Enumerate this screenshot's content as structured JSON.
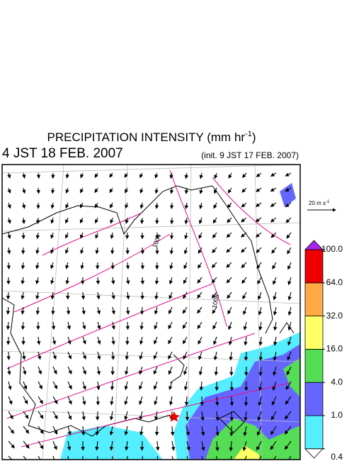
{
  "header": {
    "title": "PRECIPITATION INTENSITY (mm hr",
    "title_exponent": "-1",
    "title_close": ")",
    "valid_time": "4 JST 18 FEB. 2007",
    "init_time": "(init. 9 JST 17 FEB. 2007)"
  },
  "reference_vector": {
    "label": "20 m s",
    "exponent": "-1"
  },
  "isobar_labels": [
    "1004",
    "1008"
  ],
  "colorbar": {
    "levels": [
      0.4,
      {
        "value": 1.0,
        "label": "1.0"
      },
      {
        "value": 4.0,
        "label": "4.0"
      },
      {
        "value": 16.0,
        "label": "16.0"
      },
      {
        "value": 32.0,
        "label": "32.0"
      },
      {
        "value": 64.0,
        "label": "64.0"
      },
      {
        "value": 100.0,
        "label": "100.0"
      }
    ],
    "colors": [
      "#55eeff",
      "#6666ff",
      "#55dd55",
      "#ffff66",
      "#ffaa44",
      "#ee0000"
    ],
    "under_color": "#ffffff",
    "over_color": "#aa22ee"
  }
}
